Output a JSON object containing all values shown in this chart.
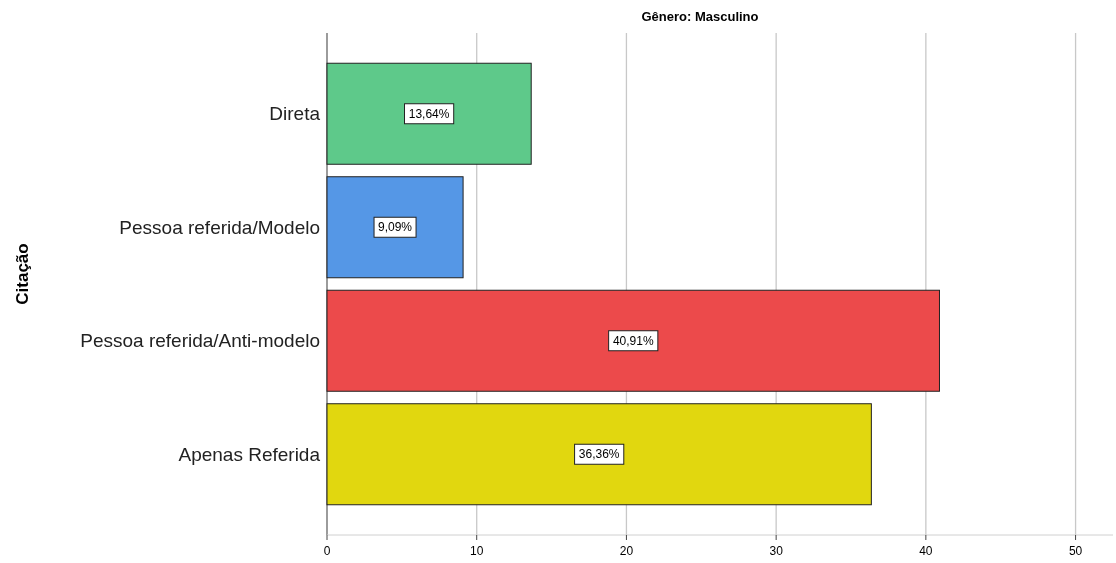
{
  "chart_data": {
    "type": "bar",
    "orientation": "horizontal",
    "title": "Gênero: Masculino",
    "ylabel": "Citação",
    "categories": [
      "Direta",
      "Pessoa referida/Modelo",
      "Pessoa referida/Anti-modelo",
      "Apenas Referida"
    ],
    "values": [
      13.64,
      9.09,
      40.91,
      36.36
    ],
    "colors": [
      "#5ec98a",
      "#5597e6",
      "#ec4a4b",
      "#e1d70f"
    ],
    "value_labels": [
      "13,64%",
      "9,09%",
      "40,91%",
      "36,36%"
    ],
    "xlim": [
      0,
      52.5
    ],
    "xticks": [
      0,
      10,
      20,
      30,
      40,
      50
    ],
    "grid": "x"
  }
}
